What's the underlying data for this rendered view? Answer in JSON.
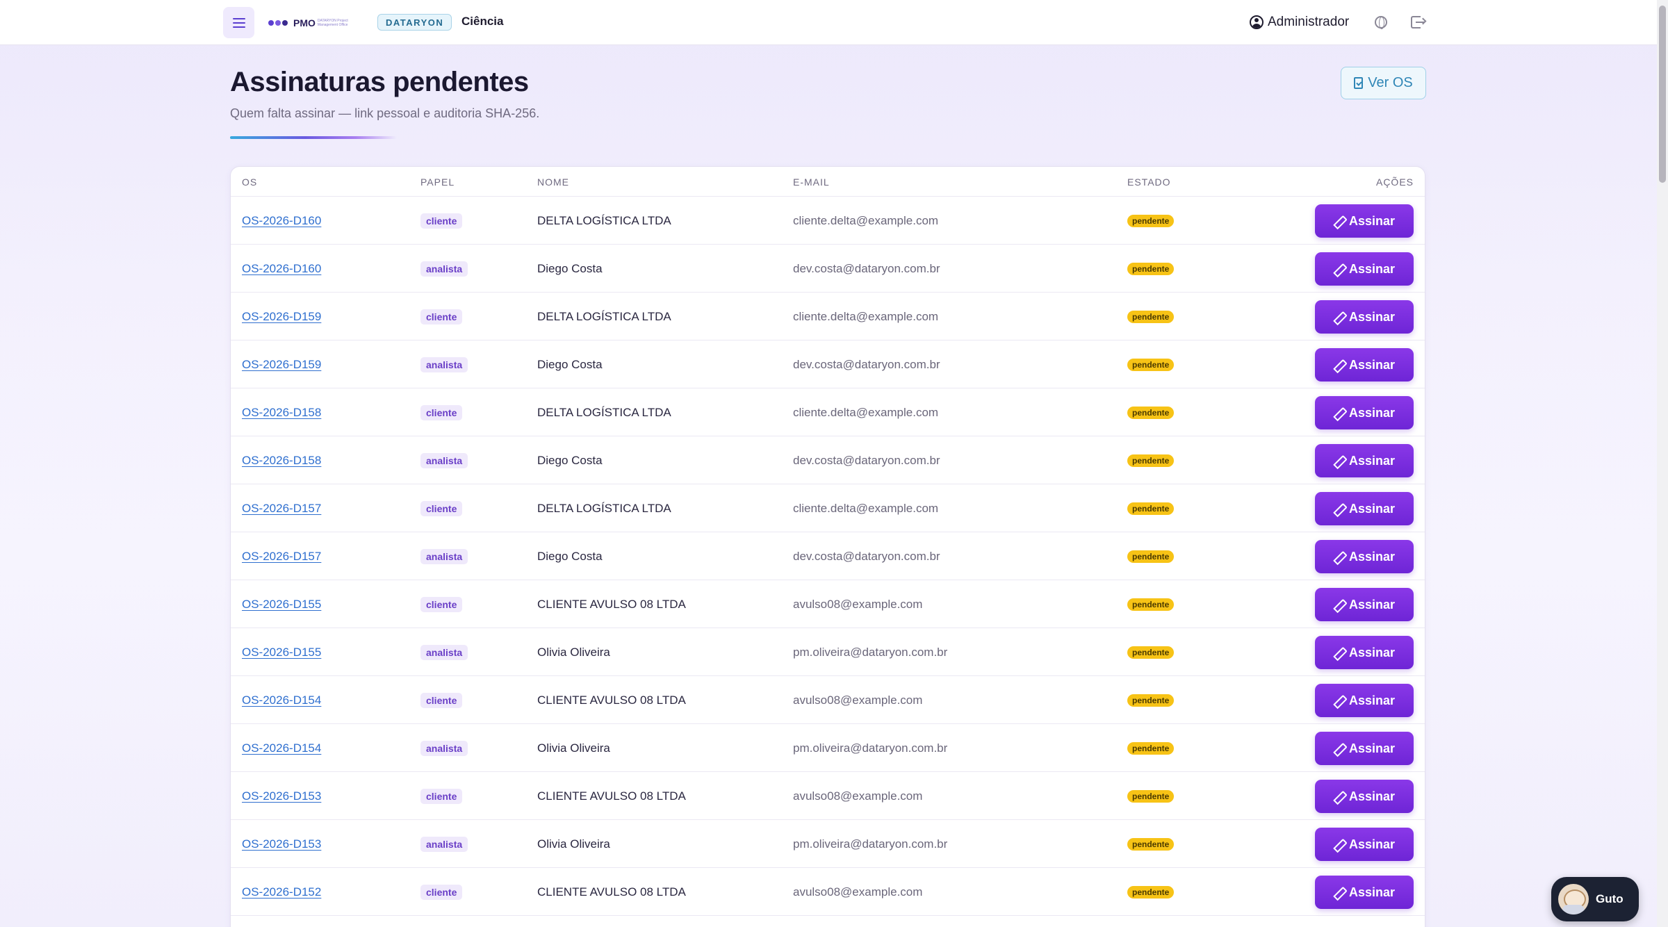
{
  "topbar": {
    "logo_text": "PMO",
    "logo_sub": "DATARYON Project Management Office",
    "brand_badge": "DATARYON",
    "nav_label": "Ciência",
    "user_name": "Administrador"
  },
  "header": {
    "title": "Assinaturas pendentes",
    "subtitle": "Quem falta assinar — link pessoal e auditoria SHA-256.",
    "ver_os_label": "Ver OS"
  },
  "table": {
    "columns": {
      "os": "OS",
      "papel": "PAPEL",
      "nome": "NOME",
      "email": "E-MAIL",
      "estado": "ESTADO",
      "acoes": "AÇÕES"
    },
    "sign_label": "Assinar",
    "rows": [
      {
        "os": "OS-2026-D160",
        "papel": "cliente",
        "nome": "DELTA LOGÍSTICA LTDA",
        "email": "cliente.delta@example.com",
        "estado": "pendente"
      },
      {
        "os": "OS-2026-D160",
        "papel": "analista",
        "nome": "Diego Costa",
        "email": "dev.costa@dataryon.com.br",
        "estado": "pendente"
      },
      {
        "os": "OS-2026-D159",
        "papel": "cliente",
        "nome": "DELTA LOGÍSTICA LTDA",
        "email": "cliente.delta@example.com",
        "estado": "pendente"
      },
      {
        "os": "OS-2026-D159",
        "papel": "analista",
        "nome": "Diego Costa",
        "email": "dev.costa@dataryon.com.br",
        "estado": "pendente"
      },
      {
        "os": "OS-2026-D158",
        "papel": "cliente",
        "nome": "DELTA LOGÍSTICA LTDA",
        "email": "cliente.delta@example.com",
        "estado": "pendente"
      },
      {
        "os": "OS-2026-D158",
        "papel": "analista",
        "nome": "Diego Costa",
        "email": "dev.costa@dataryon.com.br",
        "estado": "pendente"
      },
      {
        "os": "OS-2026-D157",
        "papel": "cliente",
        "nome": "DELTA LOGÍSTICA LTDA",
        "email": "cliente.delta@example.com",
        "estado": "pendente"
      },
      {
        "os": "OS-2026-D157",
        "papel": "analista",
        "nome": "Diego Costa",
        "email": "dev.costa@dataryon.com.br",
        "estado": "pendente"
      },
      {
        "os": "OS-2026-D155",
        "papel": "cliente",
        "nome": "CLIENTE AVULSO 08 LTDA",
        "email": "avulso08@example.com",
        "estado": "pendente"
      },
      {
        "os": "OS-2026-D155",
        "papel": "analista",
        "nome": "Olivia Oliveira",
        "email": "pm.oliveira@dataryon.com.br",
        "estado": "pendente"
      },
      {
        "os": "OS-2026-D154",
        "papel": "cliente",
        "nome": "CLIENTE AVULSO 08 LTDA",
        "email": "avulso08@example.com",
        "estado": "pendente"
      },
      {
        "os": "OS-2026-D154",
        "papel": "analista",
        "nome": "Olivia Oliveira",
        "email": "pm.oliveira@dataryon.com.br",
        "estado": "pendente"
      },
      {
        "os": "OS-2026-D153",
        "papel": "cliente",
        "nome": "CLIENTE AVULSO 08 LTDA",
        "email": "avulso08@example.com",
        "estado": "pendente"
      },
      {
        "os": "OS-2026-D153",
        "papel": "analista",
        "nome": "Olivia Oliveira",
        "email": "pm.oliveira@dataryon.com.br",
        "estado": "pendente"
      },
      {
        "os": "OS-2026-D152",
        "papel": "cliente",
        "nome": "CLIENTE AVULSO 08 LTDA",
        "email": "avulso08@example.com",
        "estado": "pendente"
      }
    ]
  },
  "assistant": {
    "name": "Guto"
  },
  "icons": {
    "menu": "hamburger-icon",
    "user": "user-circle-icon",
    "globe": "globe-icon",
    "logout": "logout-icon",
    "ver_os": "document-check-icon",
    "sign": "pencil-icon"
  },
  "colors": {
    "accent": "#6e25d6",
    "link": "#2f6fcf",
    "status_pending": "#f7c316",
    "brand_badge": "#246b91"
  }
}
